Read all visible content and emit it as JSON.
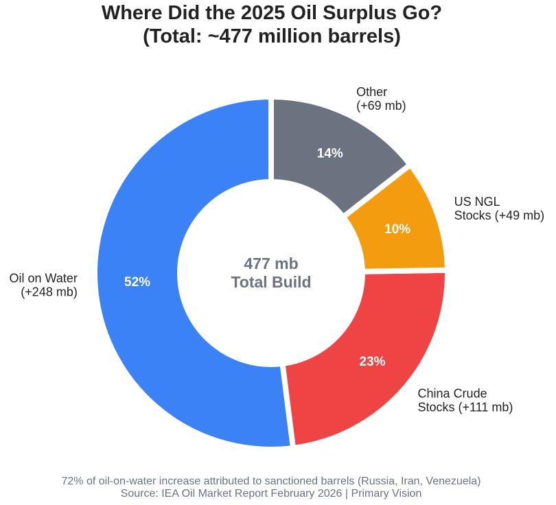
{
  "chart_data": {
    "type": "pie",
    "variant": "donut",
    "title_lines": [
      "Where Did the 2025 Oil Surplus Go?",
      "(Total: ~477 million barrels)"
    ],
    "unit": "mb",
    "start_angle_deg": 90,
    "direction": "counterclockwise",
    "slices": [
      {
        "name": "Oil on Water",
        "label_lines": [
          "Oil on Water",
          "(+248 mb)"
        ],
        "value": 248,
        "pct_label": "52%",
        "color": "#3b82f6"
      },
      {
        "name": "China Crude Stocks",
        "label_lines": [
          "China Crude",
          "Stocks (+111 mb)"
        ],
        "value": 111,
        "pct_label": "23%",
        "color": "#ef4444"
      },
      {
        "name": "US NGL Stocks",
        "label_lines": [
          "US NGL",
          "Stocks (+49 mb)"
        ],
        "value": 49,
        "pct_label": "10%",
        "color": "#f39c0e"
      },
      {
        "name": "Other",
        "label_lines": [
          "Other",
          "(+69 mb)"
        ],
        "value": 69,
        "pct_label": "14%",
        "color": "#6b7280"
      }
    ],
    "center_text": [
      "477 mb",
      "Total Build"
    ],
    "center_color": "#6b7280"
  },
  "footer": {
    "note": "72% of oil-on-water increase attributed to sanctioned barrels (Russia, Iran, Venezuela)",
    "source": "Source: IEA Oil Market Report February 2026 | Primary Vision"
  }
}
